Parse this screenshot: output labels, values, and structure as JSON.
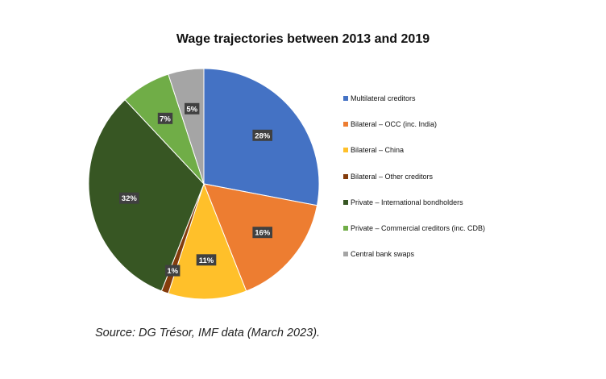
{
  "chart_data": {
    "type": "pie",
    "title": "Wage trajectories between 2013 and 2019",
    "slices": [
      {
        "label": "Multilateral creditors",
        "value": 28,
        "display": "28%",
        "color": "#4472c4"
      },
      {
        "label": "Bilateral – OCC (inc. India)",
        "value": 16,
        "display": "16%",
        "color": "#ed7d31"
      },
      {
        "label": "Bilateral – China",
        "value": 11,
        "display": "11%",
        "color": "#ffc02a"
      },
      {
        "label": "Bilateral – Other creditors",
        "value": 1,
        "display": "1%",
        "color": "#843c0c"
      },
      {
        "label": "Private – International bondholders",
        "value": 32,
        "display": "32%",
        "color": "#375623"
      },
      {
        "label": "Private – Commercial creditors (inc. CDB)",
        "value": 7,
        "display": "7%",
        "color": "#70ad47"
      },
      {
        "label": "Central bank swaps",
        "value": 5,
        "display": "5%",
        "color": "#a5a5a5"
      }
    ],
    "legend_position": "right"
  },
  "source": "Source: DG Trésor, IMF data (March 2023)."
}
